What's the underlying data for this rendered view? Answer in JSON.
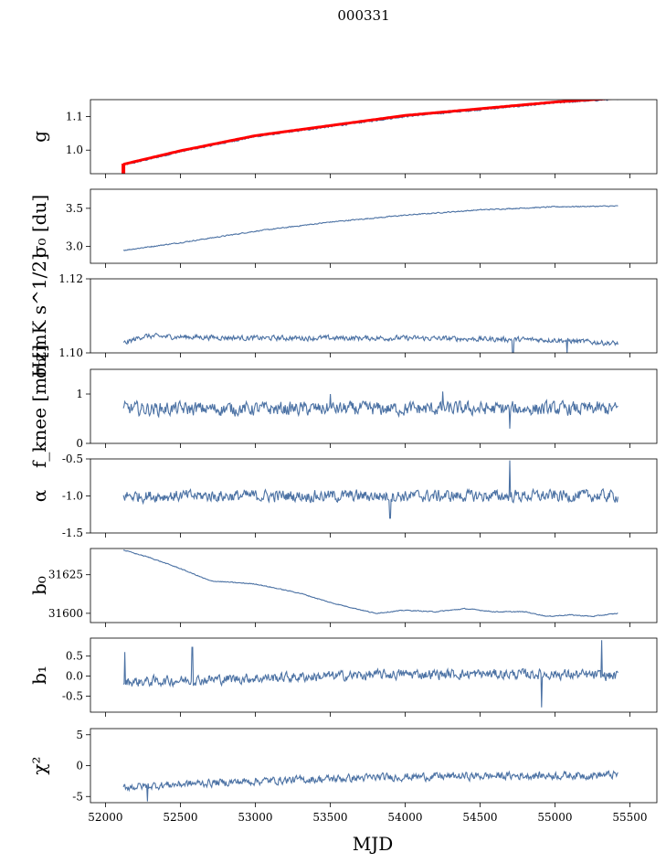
{
  "chart_data": {
    "type": "line",
    "title": "000331",
    "xlabel": "MJD",
    "xlim": [
      51900,
      55680
    ],
    "xticks": [
      "52000",
      "52500",
      "53000",
      "53500",
      "54000",
      "54500",
      "55000",
      "55500"
    ],
    "xtick_values": [
      52000,
      52500,
      53000,
      53500,
      54000,
      54500,
      55000,
      55500
    ],
    "x_start": 52120,
    "x_end": 55420,
    "series_color": "#4c72a4",
    "highlight_color": "#ff0000",
    "panels": [
      {
        "id": "g",
        "ylabel": "g",
        "ylim": [
          0.93,
          1.15
        ],
        "yticks": [
          "1.0",
          "1.1"
        ],
        "ytick_values": [
          1.0,
          1.1
        ],
        "trend": [
          [
            52120,
            0.955
          ],
          [
            52500,
            0.995
          ],
          [
            53000,
            1.04
          ],
          [
            53500,
            1.07
          ],
          [
            54000,
            1.1
          ],
          [
            54500,
            1.12
          ],
          [
            55000,
            1.14
          ],
          [
            55420,
            1.152
          ]
        ],
        "noise": 0.002,
        "spikes": [],
        "has_red": true
      },
      {
        "id": "sigma0_du",
        "ylabel": "σ₀ [du]",
        "ylim": [
          2.78,
          3.75
        ],
        "yticks": [
          "3.0",
          "3.5"
        ],
        "ytick_values": [
          3.0,
          3.5
        ],
        "trend": [
          [
            52120,
            2.95
          ],
          [
            52500,
            3.05
          ],
          [
            53000,
            3.2
          ],
          [
            53500,
            3.32
          ],
          [
            54000,
            3.41
          ],
          [
            54500,
            3.48
          ],
          [
            55000,
            3.52
          ],
          [
            55420,
            3.53
          ]
        ],
        "noise": 0.006,
        "spikes": [],
        "has_red": false
      },
      {
        "id": "sigma0_mk",
        "ylabel": "σ₀[mK s^1/2]",
        "ylim": [
          1.1,
          1.12
        ],
        "yticks": [
          "1.10",
          "1.12"
        ],
        "ytick_values": [
          1.1,
          1.12
        ],
        "trend": [
          [
            52120,
            1.1025
          ],
          [
            52250,
            1.1045
          ],
          [
            53000,
            1.104
          ],
          [
            54000,
            1.104
          ],
          [
            55000,
            1.1035
          ],
          [
            55420,
            1.1025
          ]
        ],
        "noise": 0.0006,
        "spikes": [
          [
            54720,
            1.099
          ],
          [
            55080,
            1.1
          ]
        ],
        "has_red": false
      },
      {
        "id": "fknee",
        "ylabel": "f_knee [mHz]",
        "ylim": [
          0,
          1.5
        ],
        "yticks": [
          "0",
          "1"
        ],
        "ytick_values": [
          0,
          1
        ],
        "trend": [
          [
            52120,
            0.7
          ],
          [
            55420,
            0.7
          ]
        ],
        "noise": 0.12,
        "spikes": [
          [
            53500,
            1.0
          ],
          [
            54250,
            1.05
          ],
          [
            54700,
            0.3
          ]
        ],
        "has_red": false
      },
      {
        "id": "alpha",
        "ylabel": "α",
        "ylim": [
          -1.5,
          -0.5
        ],
        "yticks": [
          "-1.5",
          "-1.0",
          "-0.5"
        ],
        "ytick_values": [
          -1.5,
          -1.0,
          -0.5
        ],
        "trend": [
          [
            52120,
            -1.0
          ],
          [
            55420,
            -1.0
          ]
        ],
        "noise": 0.07,
        "spikes": [
          [
            54700,
            -0.52
          ],
          [
            53900,
            -1.3
          ]
        ],
        "has_red": false
      },
      {
        "id": "b0",
        "ylabel": "b₀",
        "ylim": [
          31594,
          31642
        ],
        "yticks": [
          "31600",
          "31625"
        ],
        "ytick_values": [
          31600,
          31625
        ],
        "trend": [
          [
            52120,
            31641
          ],
          [
            52300,
            31636
          ],
          [
            52500,
            31629
          ],
          [
            52700,
            31621
          ],
          [
            53000,
            31619
          ],
          [
            53300,
            31613
          ],
          [
            53500,
            31607
          ],
          [
            53800,
            31600
          ],
          [
            54000,
            31602
          ],
          [
            54200,
            31601
          ],
          [
            54400,
            31603
          ],
          [
            54600,
            31601
          ],
          [
            54800,
            31601
          ],
          [
            54950,
            31598
          ],
          [
            55100,
            31599
          ],
          [
            55250,
            31598
          ],
          [
            55420,
            31600
          ]
        ],
        "noise": 0.25,
        "spikes": [],
        "has_red": false
      },
      {
        "id": "b1",
        "ylabel": "b₁",
        "ylim": [
          -0.9,
          0.95
        ],
        "yticks": [
          "-0.5",
          "0.0",
          "0.5"
        ],
        "ytick_values": [
          -0.5,
          0.0,
          0.5
        ],
        "trend": [
          [
            52120,
            -0.15
          ],
          [
            53000,
            -0.05
          ],
          [
            54000,
            0.05
          ],
          [
            55000,
            0.05
          ],
          [
            55420,
            0.0
          ]
        ],
        "noise": 0.11,
        "spikes": [
          [
            52130,
            0.6
          ],
          [
            52580,
            0.72
          ],
          [
            54910,
            -0.78
          ],
          [
            55310,
            0.9
          ]
        ],
        "has_red": false
      },
      {
        "id": "chi2",
        "ylabel": "χ²",
        "ylim": [
          -6,
          6
        ],
        "yticks": [
          "-5",
          "0",
          "5"
        ],
        "ytick_values": [
          -5,
          0,
          5
        ],
        "trend": [
          [
            52120,
            -3.5
          ],
          [
            52500,
            -3.0
          ],
          [
            53000,
            -2.5
          ],
          [
            54000,
            -1.8
          ],
          [
            55420,
            -1.5
          ]
        ],
        "noise": 0.55,
        "spikes": [
          [
            52280,
            -5.8
          ]
        ],
        "has_red": false
      }
    ]
  }
}
